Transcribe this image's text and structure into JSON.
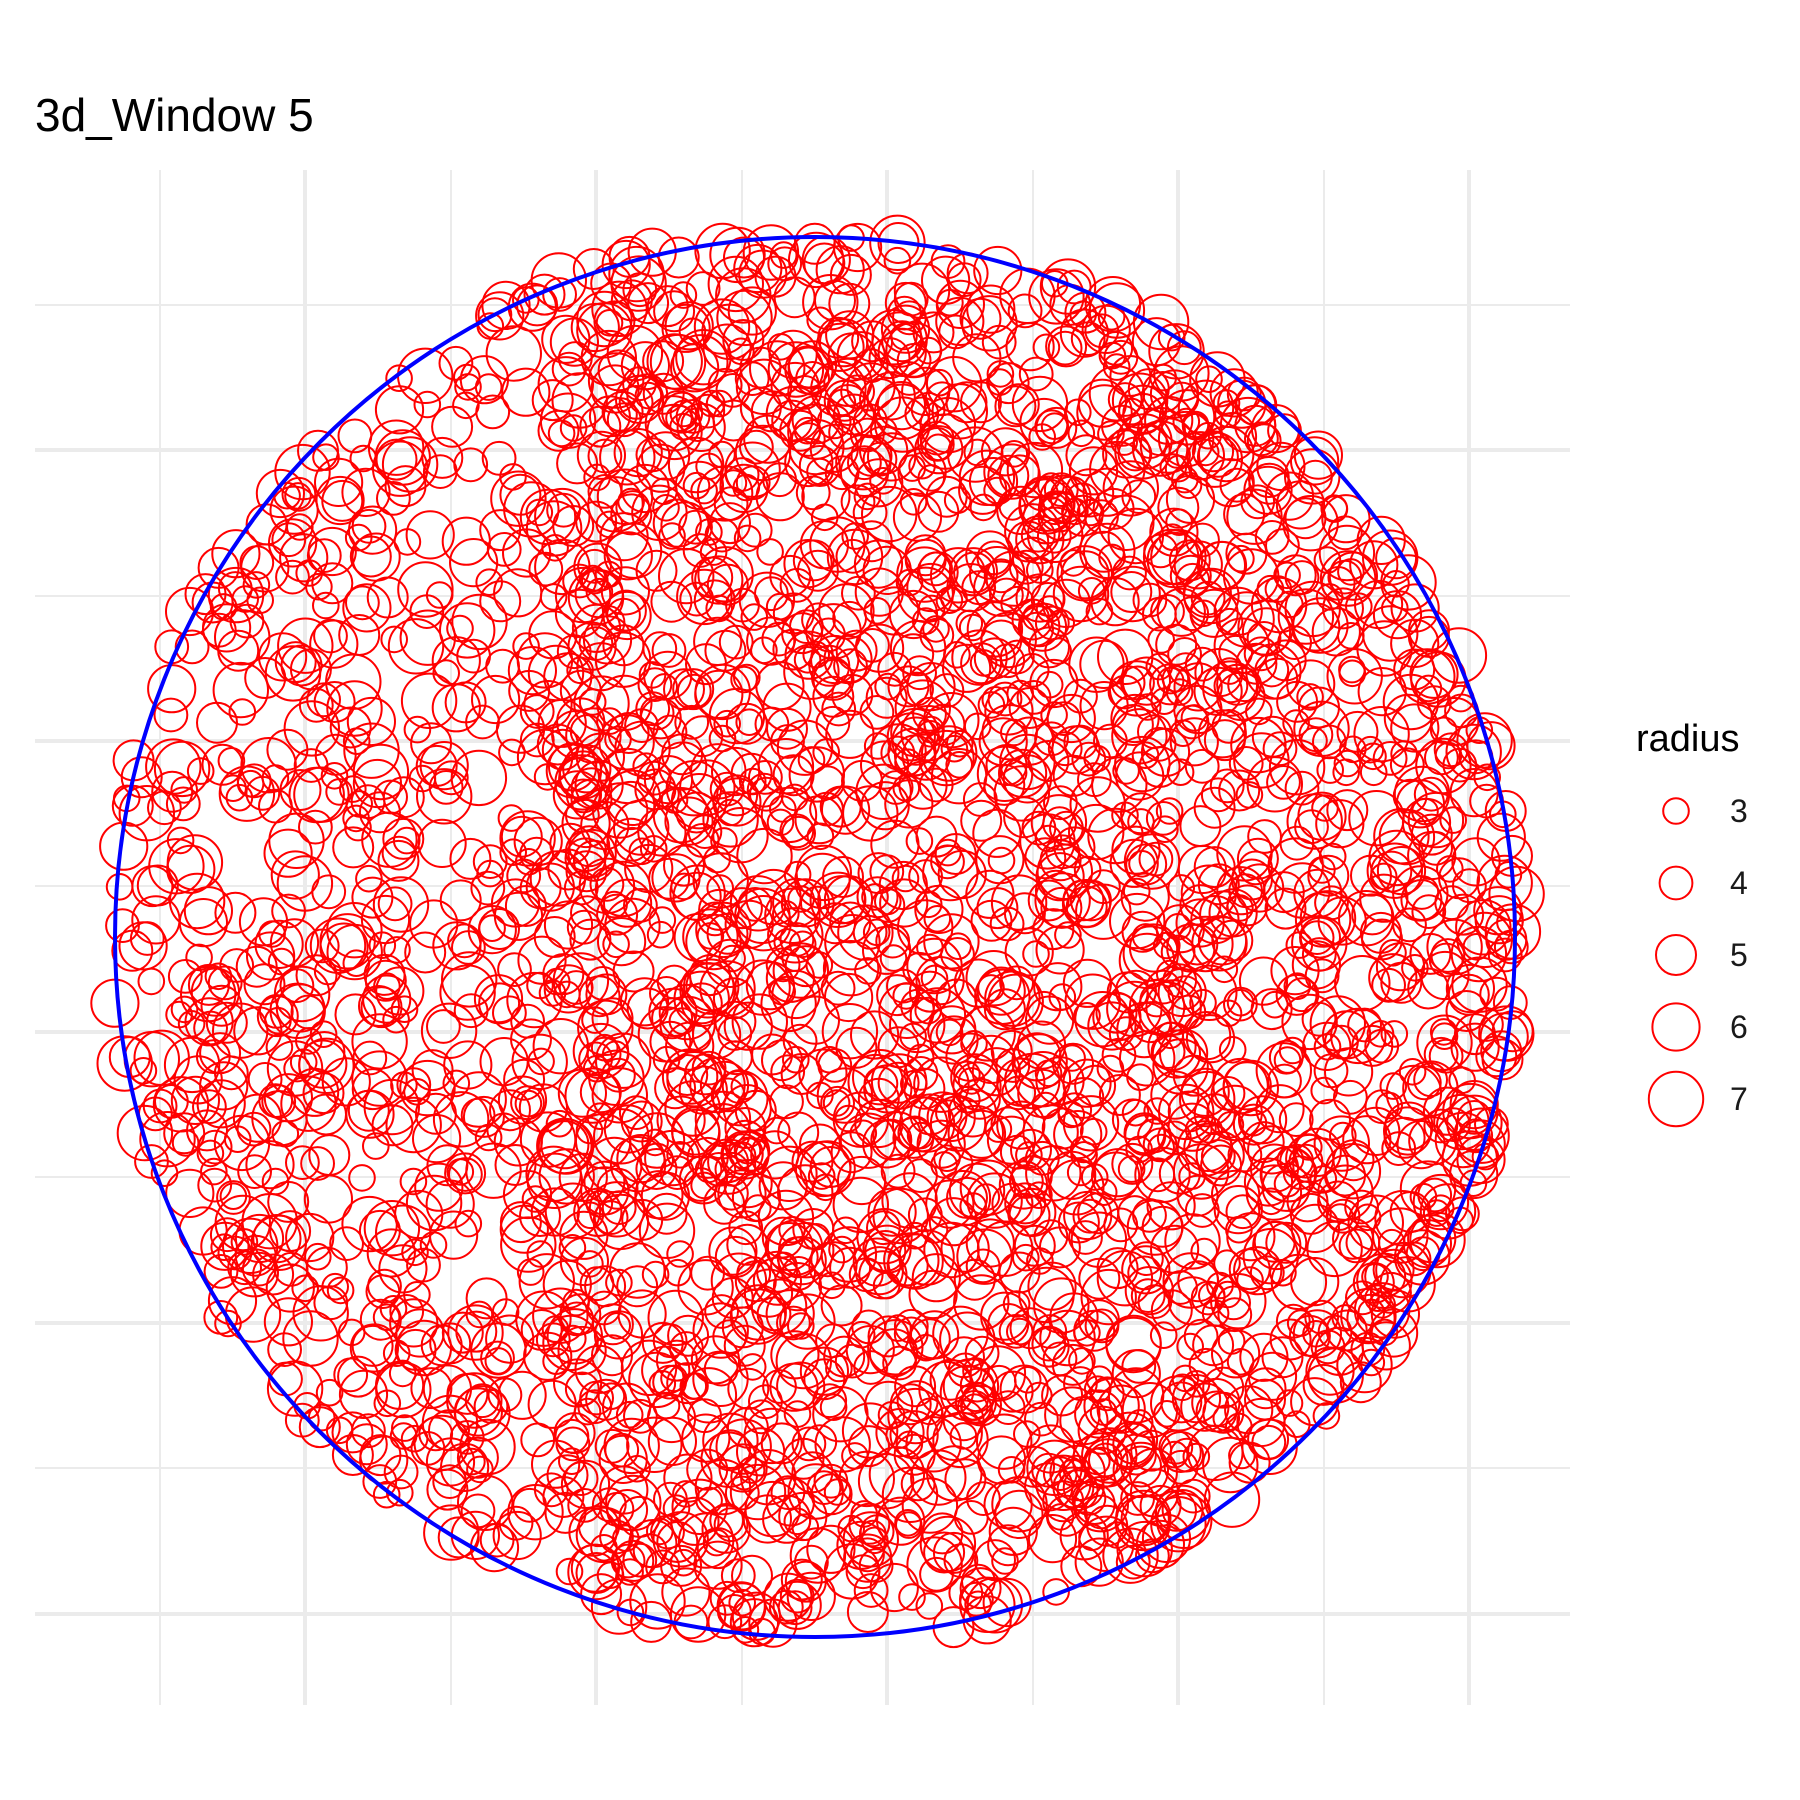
{
  "chart_data": {
    "type": "scatter",
    "title": "3d_Window 5",
    "xlabel": "",
    "ylabel": "",
    "x_ticks_shown": false,
    "y_ticks_shown": false,
    "grid": true,
    "window": {
      "shape": "circle",
      "color": "#0000ff"
    },
    "point_style": {
      "shape": "open-circle",
      "color": "#ff0000"
    },
    "legend": {
      "title": "radius",
      "placement": "right",
      "entries": [
        {
          "label": "3",
          "value": 3
        },
        {
          "label": "4",
          "value": 4
        },
        {
          "label": "5",
          "value": 5
        },
        {
          "label": "6",
          "value": 6
        },
        {
          "label": "7",
          "value": 7
        }
      ]
    },
    "n_points_approx": 3500,
    "density_note_visible": false
  },
  "colors": {
    "background": "#ffffff",
    "grid": "#ebebeb",
    "points": "#ff0000",
    "window": "#0000ff"
  }
}
